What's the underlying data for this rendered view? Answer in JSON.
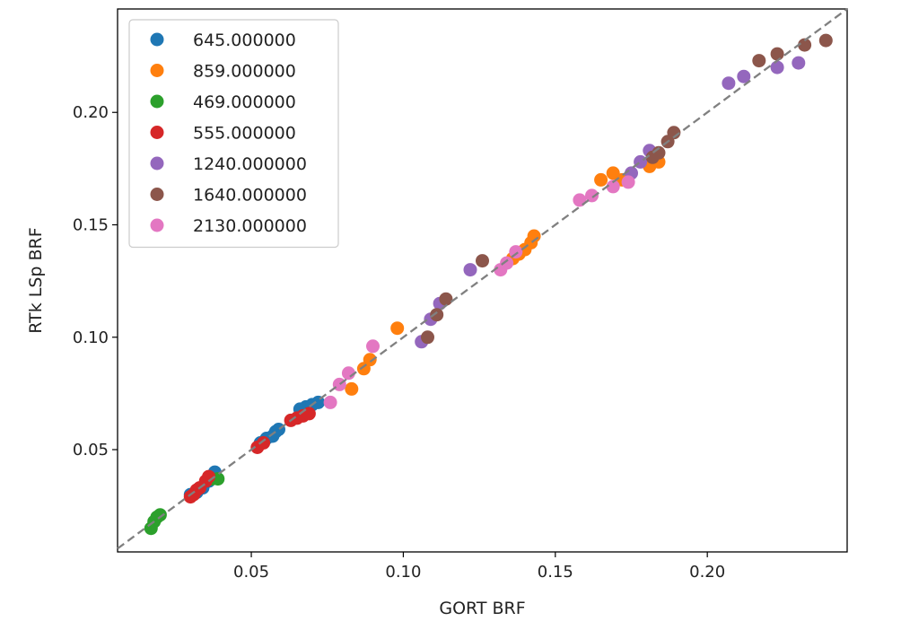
{
  "chart_data": {
    "type": "scatter",
    "title": "",
    "xlabel": "GORT BRF",
    "ylabel": "RTk LSp BRF",
    "xlim": [
      0.006,
      0.246
    ],
    "ylim": [
      0.0045,
      0.246
    ],
    "xticks": [
      0.05,
      0.1,
      0.15,
      0.2
    ],
    "yticks": [
      0.05,
      0.1,
      0.15,
      0.2
    ],
    "xtick_labels": [
      "0.05",
      "0.10",
      "0.15",
      "0.20"
    ],
    "ytick_labels": [
      "0.05",
      "0.10",
      "0.15",
      "0.20"
    ],
    "grid": false,
    "legend_position": "top-left",
    "reference_line": {
      "style": "dashed",
      "color": "#808080",
      "slope": 1,
      "intercept": 0
    },
    "series": [
      {
        "name": "645.000000",
        "color": "#1f77b4",
        "x": [
          0.03,
          0.032,
          0.034,
          0.036,
          0.038,
          0.053,
          0.055,
          0.057,
          0.058,
          0.059,
          0.066,
          0.068,
          0.07,
          0.072
        ],
        "y": [
          0.03,
          0.031,
          0.033,
          0.036,
          0.04,
          0.053,
          0.055,
          0.056,
          0.058,
          0.059,
          0.068,
          0.069,
          0.07,
          0.071
        ]
      },
      {
        "name": "859.000000",
        "color": "#ff7f0e",
        "x": [
          0.083,
          0.087,
          0.089,
          0.098,
          0.136,
          0.138,
          0.14,
          0.142,
          0.143,
          0.165,
          0.169,
          0.172,
          0.181,
          0.184
        ],
        "y": [
          0.077,
          0.086,
          0.09,
          0.104,
          0.135,
          0.137,
          0.139,
          0.142,
          0.145,
          0.17,
          0.173,
          0.17,
          0.176,
          0.178
        ]
      },
      {
        "name": "469.000000",
        "color": "#2ca02c",
        "x": [
          0.017,
          0.018,
          0.019,
          0.02,
          0.037,
          0.039
        ],
        "y": [
          0.015,
          0.018,
          0.02,
          0.021,
          0.037,
          0.037
        ]
      },
      {
        "name": "555.000000",
        "color": "#d62728",
        "x": [
          0.03,
          0.031,
          0.032,
          0.033,
          0.035,
          0.036,
          0.052,
          0.054,
          0.063,
          0.065,
          0.067,
          0.069
        ],
        "y": [
          0.029,
          0.03,
          0.032,
          0.033,
          0.036,
          0.038,
          0.051,
          0.053,
          0.063,
          0.064,
          0.065,
          0.066
        ]
      },
      {
        "name": "1240.000000",
        "color": "#9467bd",
        "x": [
          0.106,
          0.109,
          0.112,
          0.122,
          0.175,
          0.178,
          0.181,
          0.207,
          0.212,
          0.223,
          0.23
        ],
        "y": [
          0.098,
          0.108,
          0.115,
          0.13,
          0.173,
          0.178,
          0.183,
          0.213,
          0.216,
          0.22,
          0.222
        ]
      },
      {
        "name": "1640.000000",
        "color": "#8c564b",
        "x": [
          0.108,
          0.111,
          0.114,
          0.126,
          0.182,
          0.184,
          0.187,
          0.189,
          0.217,
          0.223,
          0.232,
          0.239
        ],
        "y": [
          0.1,
          0.11,
          0.117,
          0.134,
          0.18,
          0.182,
          0.187,
          0.191,
          0.223,
          0.226,
          0.23,
          0.232
        ]
      },
      {
        "name": "2130.000000",
        "color": "#e377c2",
        "x": [
          0.076,
          0.079,
          0.082,
          0.09,
          0.132,
          0.134,
          0.137,
          0.158,
          0.162,
          0.169,
          0.174
        ],
        "y": [
          0.071,
          0.079,
          0.084,
          0.096,
          0.13,
          0.133,
          0.138,
          0.161,
          0.163,
          0.167,
          0.169
        ]
      }
    ]
  }
}
